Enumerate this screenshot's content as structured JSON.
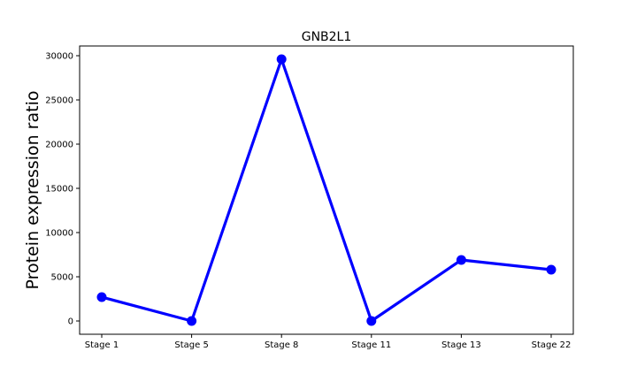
{
  "chart_data": {
    "type": "line",
    "title": "GNB2L1",
    "xlabel": "",
    "ylabel": "Protein expression ratio",
    "categories": [
      "Stage 1",
      "Stage 5",
      "Stage 8",
      "Stage 11",
      "Stage 13",
      "Stage 22"
    ],
    "series": [
      {
        "values": [
          2700,
          0,
          29600,
          0,
          6900,
          5800
        ],
        "color": "#0000ff",
        "marker": "circle"
      }
    ],
    "yticks": [
      0,
      5000,
      10000,
      15000,
      20000,
      25000,
      30000
    ],
    "ylim": [
      -1500,
      31100
    ],
    "grid": false,
    "legend": "none"
  }
}
